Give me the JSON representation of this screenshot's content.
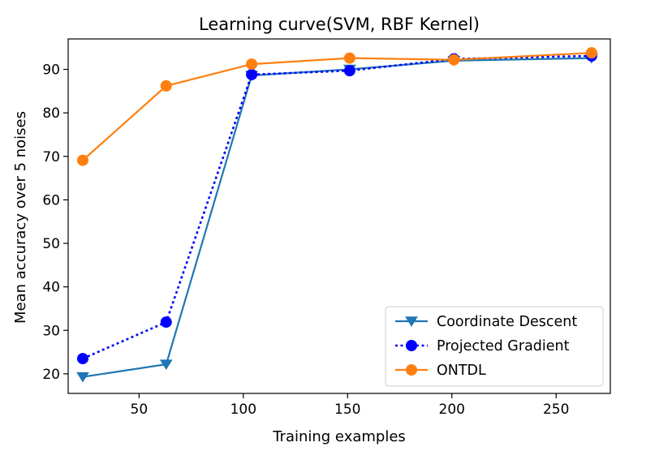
{
  "chart_data": {
    "type": "line",
    "title": "Learning curve(SVM, RBF Kernel)",
    "xlabel": "Training examples",
    "ylabel": "Mean accuracy over 5 noises",
    "xlim": [
      16,
      276
    ],
    "ylim": [
      15.5,
      97
    ],
    "xticks": [
      50,
      100,
      150,
      200,
      250
    ],
    "yticks": [
      20,
      30,
      40,
      50,
      60,
      70,
      80,
      90
    ],
    "x": [
      23,
      63,
      104,
      151,
      201,
      267
    ],
    "legend_position": "lower right",
    "grid": false,
    "series": [
      {
        "name": "Coordinate Descent",
        "color": "#1f77b4",
        "marker": "triangle-down",
        "linestyle": "solid",
        "values": [
          19.3,
          22.2,
          88.6,
          90.0,
          92.0,
          92.6
        ]
      },
      {
        "name": "Projected Gradient",
        "color": "#0000ff",
        "marker": "circle",
        "linestyle": "dotted",
        "values": [
          23.5,
          31.9,
          88.8,
          89.7,
          92.4,
          93.1
        ]
      },
      {
        "name": "ONTDL",
        "color": "#ff7f0e",
        "marker": "circle",
        "linestyle": "solid",
        "values": [
          69.1,
          86.2,
          91.2,
          92.6,
          92.2,
          93.8
        ]
      }
    ]
  }
}
